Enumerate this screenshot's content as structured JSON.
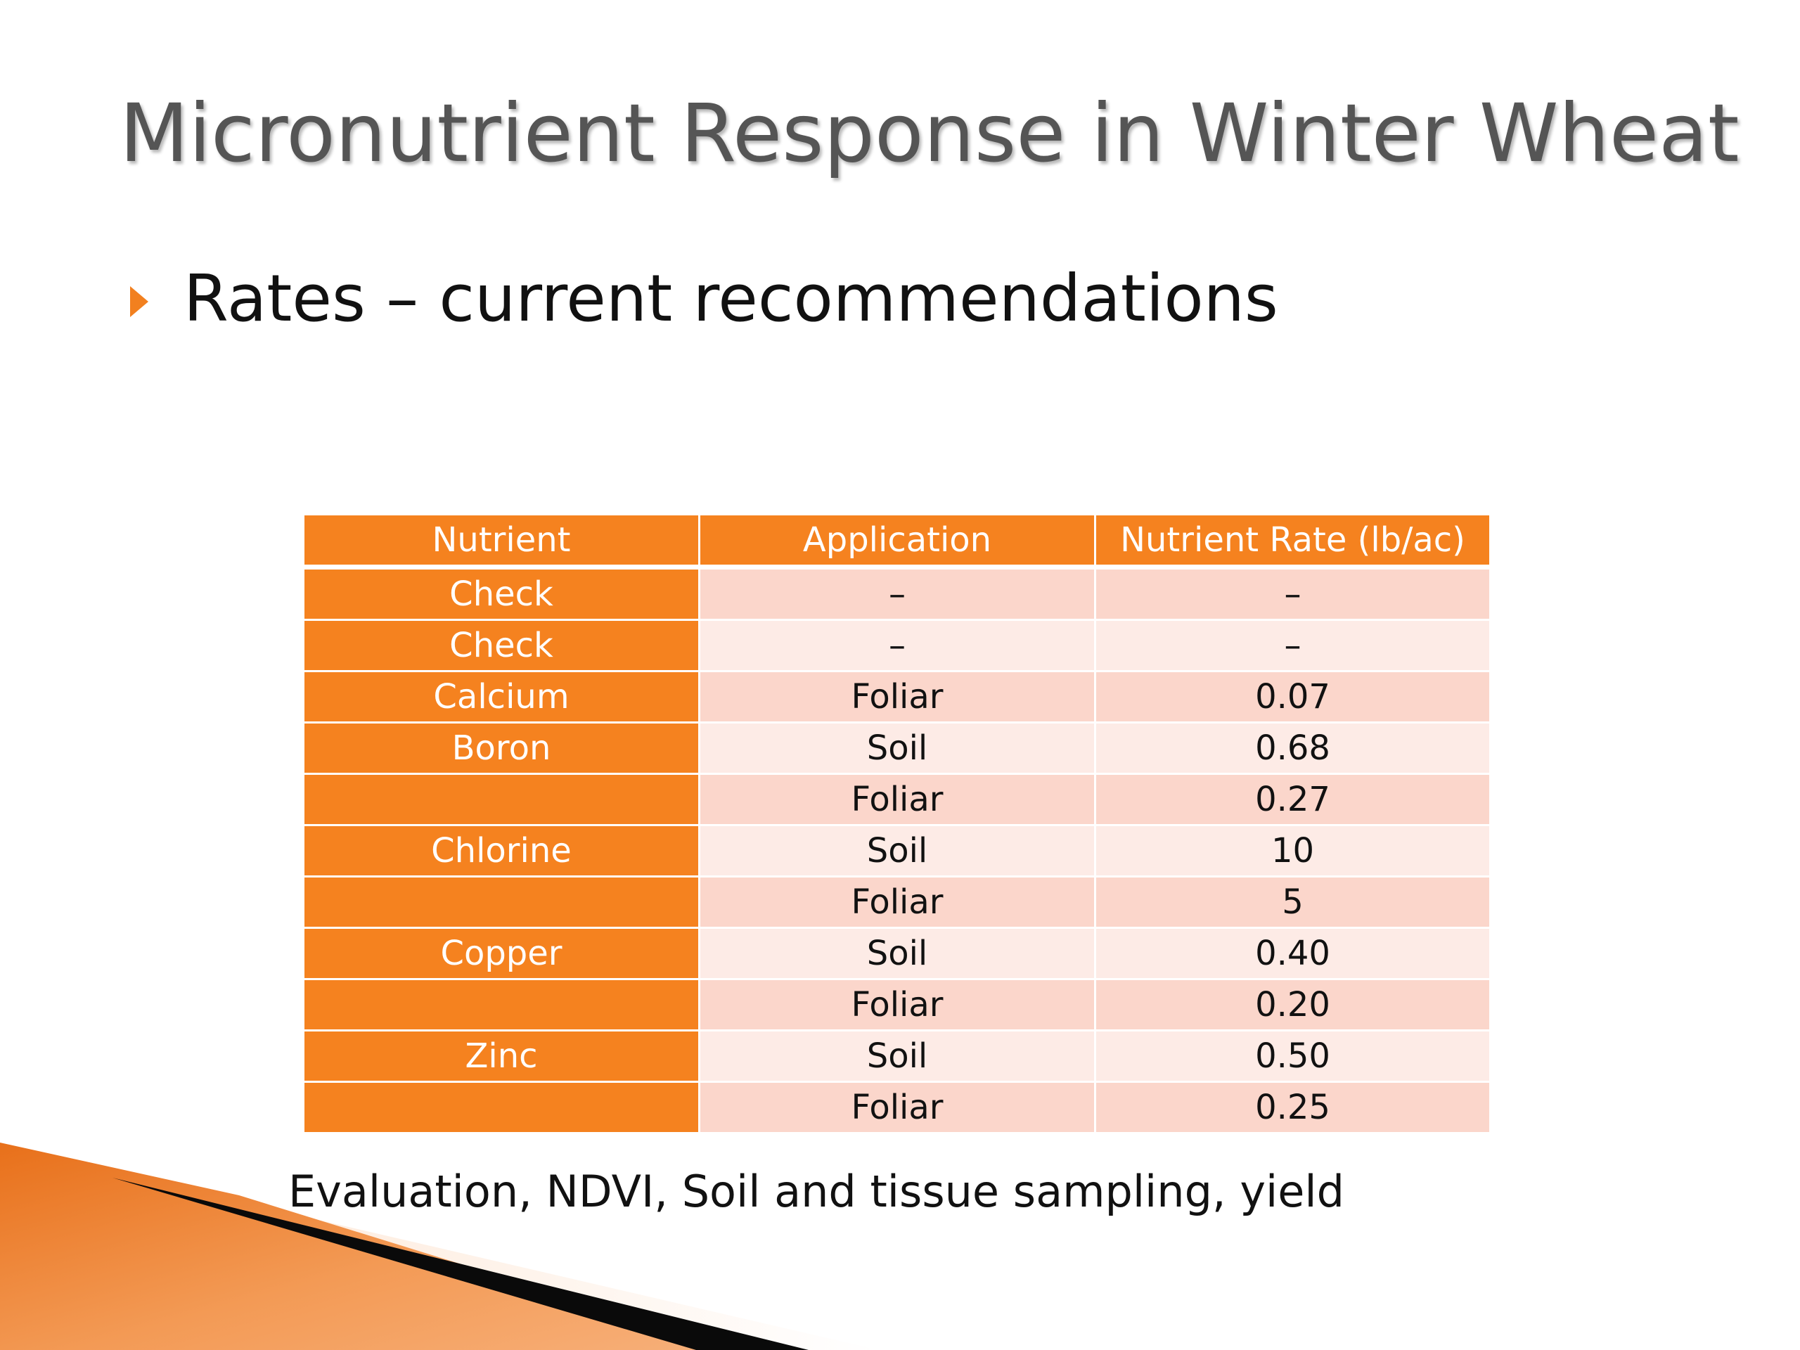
{
  "slide": {
    "title": "Micronutrient Response in Winter Wheat",
    "bullet": "Rates – current recommendations",
    "footer": "Evaluation, NDVI, Soil and tissue sampling, yield"
  },
  "table": {
    "headers": [
      "Nutrient",
      "Application",
      "Nutrient Rate (lb/ac)"
    ],
    "rows": [
      {
        "nutrient": "Check",
        "application": "–",
        "rate": "–"
      },
      {
        "nutrient": "Check",
        "application": "–",
        "rate": "–"
      },
      {
        "nutrient": "Calcium",
        "application": "Foliar",
        "rate": "0.07"
      },
      {
        "nutrient": "Boron",
        "application": "Soil",
        "rate": "0.68"
      },
      {
        "nutrient": "",
        "application": "Foliar",
        "rate": "0.27"
      },
      {
        "nutrient": "Chlorine",
        "application": "Soil",
        "rate": "10"
      },
      {
        "nutrient": "",
        "application": "Foliar",
        "rate": "5"
      },
      {
        "nutrient": "Copper",
        "application": "Soil",
        "rate": "0.40"
      },
      {
        "nutrient": "",
        "application": "Foliar",
        "rate": "0.20"
      },
      {
        "nutrient": "Zinc",
        "application": "Soil",
        "rate": "0.50"
      },
      {
        "nutrient": "",
        "application": "Foliar",
        "rate": "0.25"
      }
    ]
  },
  "colors": {
    "accent": "#f5821f",
    "row_odd": "#fbd6cb",
    "row_even": "#fdebe6",
    "title": "#555555"
  },
  "icons": {
    "bullet": "triangle-bullet-icon"
  }
}
